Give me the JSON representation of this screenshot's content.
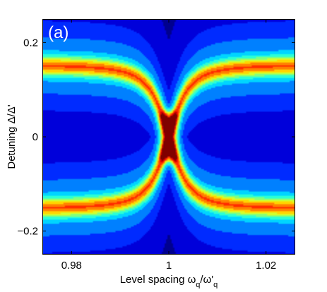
{
  "chart_data": {
    "type": "heatmap",
    "panel_label": "(a)",
    "xlabel_parts": {
      "prefix": "Level spacing ω",
      "sub1": "q",
      "mid": "/ω'",
      "sub2": "q"
    },
    "ylabel": "Detuning Δ/Δ'",
    "xlim": [
      0.974,
      1.026
    ],
    "ylim": [
      -0.25,
      0.25
    ],
    "x_ticks": [
      {
        "value": 0.98,
        "label": "0.98"
      },
      {
        "value": 1.0,
        "label": "1"
      },
      {
        "value": 1.02,
        "label": "1.02"
      }
    ],
    "y_ticks": [
      {
        "value": 0.2,
        "label": "0.2"
      },
      {
        "value": 0.0,
        "label": "0"
      },
      {
        "value": -0.2,
        "label": "−0.2"
      }
    ],
    "colormap": "jet",
    "colormap_stops": [
      "#00008f",
      "#0000ff",
      "#0080ff",
      "#00ffff",
      "#80ff80",
      "#ffff00",
      "#ff8000",
      "#ff0000",
      "#800000"
    ],
    "features": {
      "resonance_branch_far_detuning": 0.153,
      "resonance_center_level_spacing": 1.0,
      "central_peak": {
        "level_spacing": 1.0,
        "detuning_range": [
          -0.06,
          0.06
        ]
      }
    }
  }
}
